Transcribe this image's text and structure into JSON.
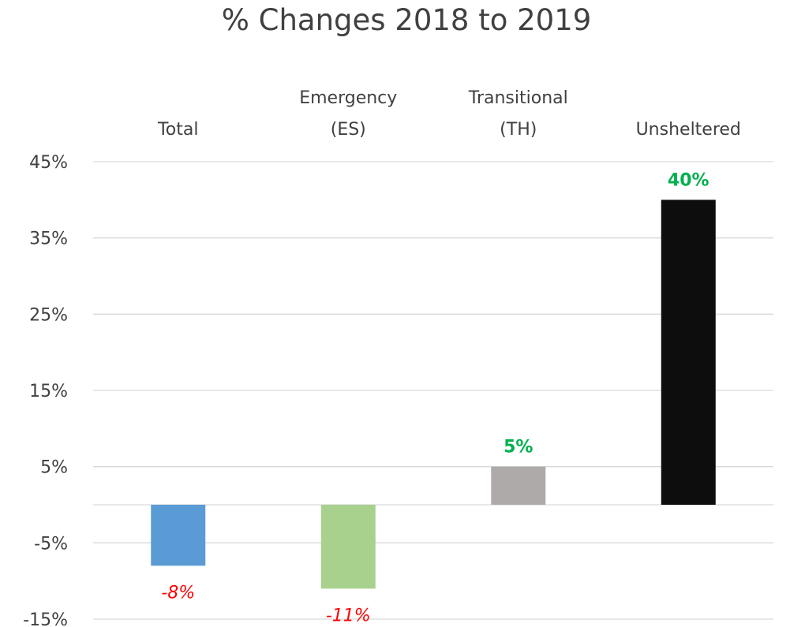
{
  "chart_data": {
    "type": "bar",
    "title": "% Changes 2018 to 2019",
    "categories": [
      [
        "Total"
      ],
      [
        "Emergency",
        "(ES)"
      ],
      [
        "Transitional",
        "(TH)"
      ],
      [
        "Unsheltered"
      ]
    ],
    "values": [
      -8,
      -11,
      5,
      40
    ],
    "data_labels": [
      "-8%",
      "-11%",
      "5%",
      "40%"
    ],
    "bar_colors": [
      "#5b9bd5",
      "#a9d18e",
      "#aeaaaa",
      "#0d0d0d"
    ],
    "label_colors": {
      "positive": "#00b050",
      "negative": "#ff0000"
    },
    "yticks": [
      45,
      35,
      25,
      15,
      5,
      -5,
      -15
    ],
    "ytick_labels": [
      "45%",
      "35%",
      "25%",
      "15%",
      "5%",
      "-5%",
      "-15%"
    ],
    "ylim": [
      -15,
      45
    ],
    "category_axis_position": "top",
    "grid": true,
    "legend": "none"
  }
}
